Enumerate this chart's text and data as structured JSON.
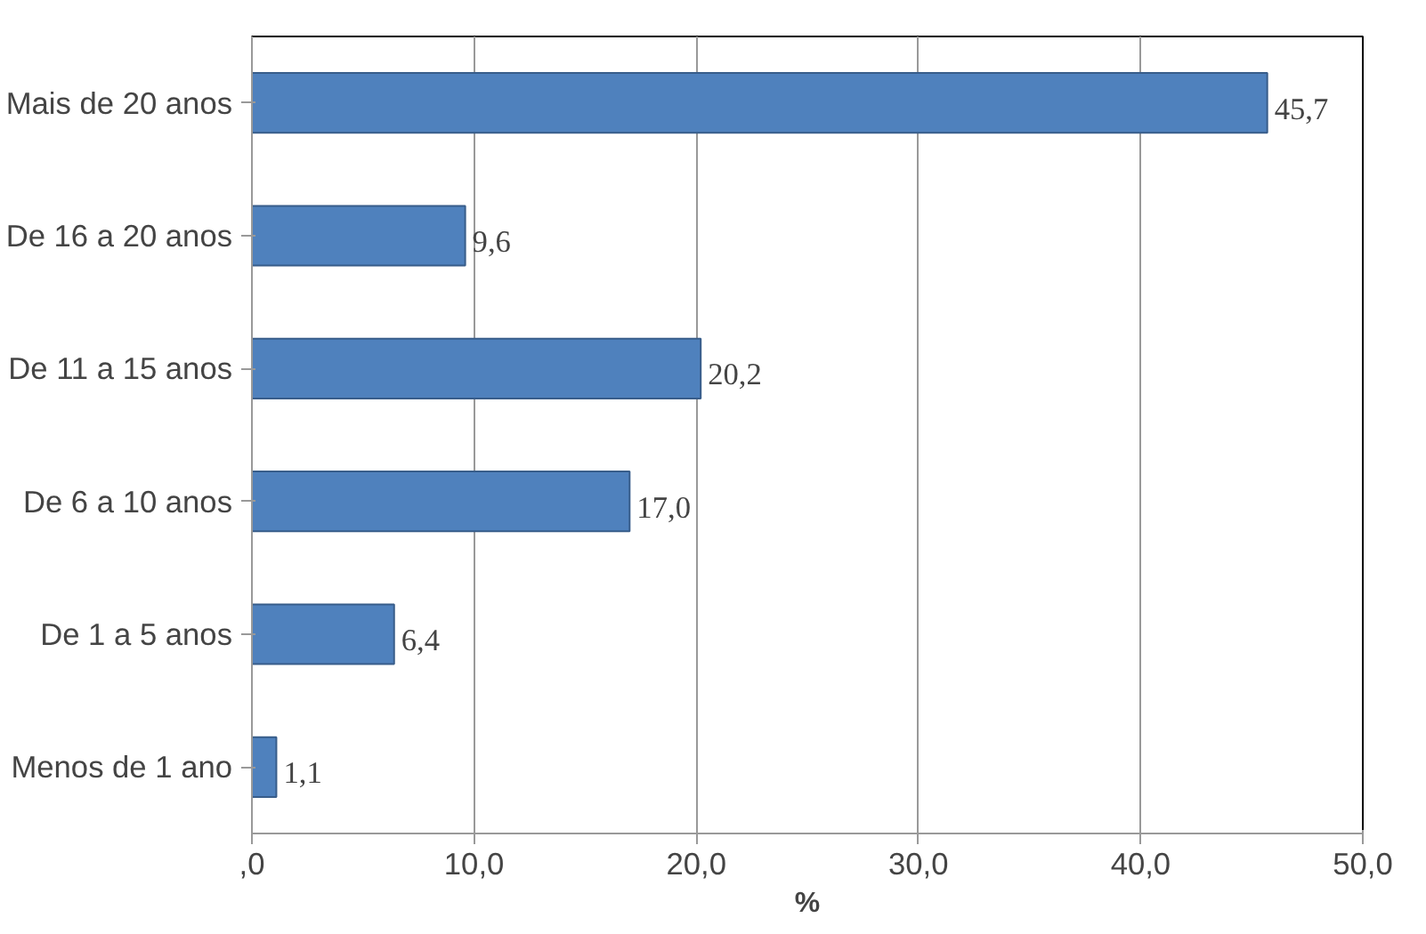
{
  "chart_data": {
    "type": "bar",
    "orientation": "horizontal",
    "xlabel": "%",
    "categories": [
      "Mais de 20 anos",
      "De 16 a 20 anos",
      "De 11 a 15 anos",
      "De 6 a 10 anos",
      "De 1 a 5 anos",
      "Menos de 1 ano"
    ],
    "values": [
      45.7,
      9.6,
      20.2,
      17.0,
      6.4,
      1.1
    ],
    "value_labels": [
      "45,7",
      "9,6",
      "20,2",
      "17,0",
      "6,4",
      "1,1"
    ],
    "color": "#4f81bd",
    "xlim": [
      0,
      50
    ],
    "xticks": [
      {
        "value": 0,
        "label": ",0"
      },
      {
        "value": 10,
        "label": "10,0"
      },
      {
        "value": 20,
        "label": "20,0"
      },
      {
        "value": 30,
        "label": "30,0"
      },
      {
        "value": 40,
        "label": "40,0"
      },
      {
        "value": 50,
        "label": "50,0"
      }
    ],
    "grid": "x"
  }
}
